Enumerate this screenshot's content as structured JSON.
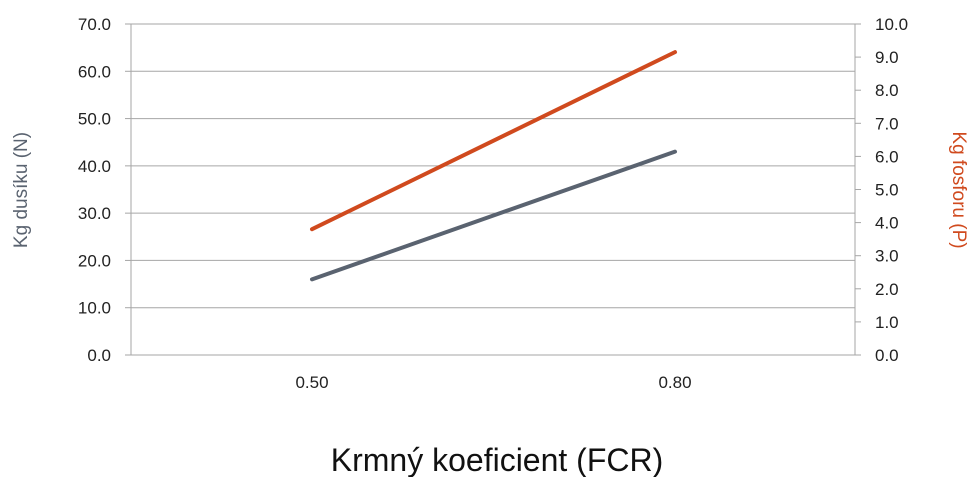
{
  "chart_data": {
    "type": "line",
    "x_categories": [
      "0.50",
      "0.80"
    ],
    "xlabel": "Krmný koeficient (FCR)",
    "y_left": {
      "label": "Kg dusíku (N)",
      "range": [
        0,
        70
      ],
      "ticks": [
        "0.0",
        "10.0",
        "20.0",
        "30.0",
        "40.0",
        "50.0",
        "60.0",
        "70.0"
      ]
    },
    "y_right": {
      "label": "Kg fosforu (P)",
      "range": [
        0,
        10
      ],
      "ticks": [
        "0.0",
        "1.0",
        "2.0",
        "3.0",
        "4.0",
        "5.0",
        "6.0",
        "7.0",
        "8.0",
        "9.0",
        "10.0"
      ]
    },
    "series": [
      {
        "axis": "left",
        "color": "#5a6370",
        "values": [
          16.0,
          43.0
        ]
      },
      {
        "axis": "right",
        "color": "#d04a1e",
        "values": [
          3.8,
          9.15
        ]
      }
    ],
    "grid": true,
    "colors": {
      "left_label": "#5a6370",
      "right_label": "#d04a1e",
      "grid": "#a6a6a6"
    }
  }
}
